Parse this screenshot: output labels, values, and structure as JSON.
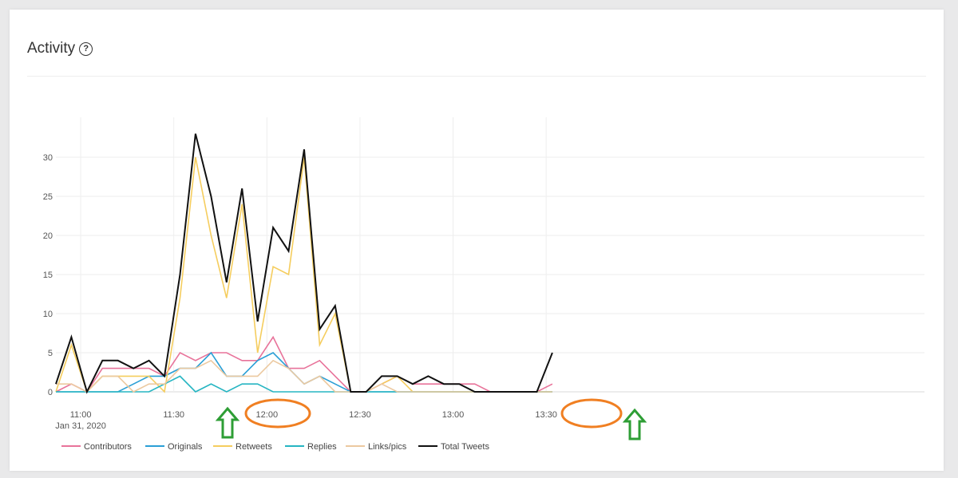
{
  "header": {
    "title": "Activity",
    "help_icon": "question-circle-icon"
  },
  "chart_data": {
    "type": "line",
    "title": "Activity",
    "xlabel": "",
    "ylabel": "",
    "ylim": [
      0,
      35
    ],
    "yticks": [
      0,
      5,
      10,
      15,
      20,
      25,
      30
    ],
    "grid": true,
    "legend_position": "bottom-left",
    "date_label": "Jan 31, 2020",
    "xticks": [
      "11:00",
      "11:30",
      "12:00",
      "12:30",
      "13:00",
      "13:30"
    ],
    "x": [
      "10:52",
      "10:57",
      "11:02",
      "11:07",
      "11:12",
      "11:17",
      "11:22",
      "11:27",
      "11:32",
      "11:37",
      "11:42",
      "11:47",
      "11:52",
      "11:57",
      "12:02",
      "12:07",
      "12:12",
      "12:17",
      "12:22",
      "12:27",
      "12:32",
      "12:37",
      "12:42",
      "12:47",
      "12:52",
      "12:57",
      "13:02",
      "13:07",
      "13:12",
      "13:17",
      "13:22",
      "13:27",
      "13:32"
    ],
    "series": [
      {
        "name": "Contributors",
        "color": "#e8739a",
        "values": [
          0,
          1,
          0,
          3,
          3,
          3,
          3,
          2,
          5,
          4,
          5,
          5,
          4,
          4,
          7,
          3,
          3,
          4,
          2,
          0,
          0,
          1,
          2,
          1,
          1,
          1,
          1,
          1,
          0,
          0,
          0,
          0,
          1
        ]
      },
      {
        "name": "Originals",
        "color": "#2a9fd6",
        "values": [
          0,
          0,
          0,
          0,
          0,
          1,
          2,
          2,
          3,
          3,
          5,
          2,
          2,
          4,
          5,
          3,
          1,
          2,
          1,
          0,
          0,
          0,
          0,
          0,
          0,
          0,
          0,
          0,
          0,
          0,
          0,
          0,
          0
        ]
      },
      {
        "name": "Retweets",
        "color": "#f5cd5e",
        "values": [
          0,
          6,
          0,
          2,
          2,
          2,
          2,
          0,
          12,
          30,
          20,
          12,
          24,
          5,
          16,
          15,
          30,
          6,
          10,
          0,
          0,
          1,
          2,
          0,
          0,
          0,
          0,
          0,
          0,
          0,
          0,
          0,
          0
        ]
      },
      {
        "name": "Replies",
        "color": "#26b5c2",
        "values": [
          0,
          0,
          0,
          0,
          0,
          0,
          0,
          1,
          2,
          0,
          1,
          0,
          1,
          1,
          0,
          0,
          0,
          0,
          0,
          0,
          0,
          0,
          0,
          0,
          0,
          0,
          0,
          0,
          0,
          0,
          0,
          0,
          0
        ]
      },
      {
        "name": "Links/pics",
        "color": "#ecc9a0",
        "values": [
          1,
          1,
          0,
          2,
          2,
          0,
          1,
          1,
          3,
          3,
          4,
          2,
          2,
          2,
          4,
          3,
          1,
          2,
          0,
          0,
          0,
          1,
          0,
          0,
          0,
          0,
          0,
          0,
          0,
          0,
          0,
          0,
          0
        ]
      },
      {
        "name": "Total Tweets",
        "color": "#111111",
        "values": [
          1,
          7,
          0,
          4,
          4,
          3,
          4,
          2,
          15,
          33,
          25,
          14,
          26,
          9,
          21,
          18,
          31,
          8,
          11,
          0,
          0,
          2,
          2,
          1,
          2,
          1,
          1,
          0,
          0,
          0,
          0,
          0,
          5
        ]
      }
    ]
  },
  "annotations": {
    "arrow_color": "#2e9e35",
    "ellipse_color": "#f07f22"
  }
}
